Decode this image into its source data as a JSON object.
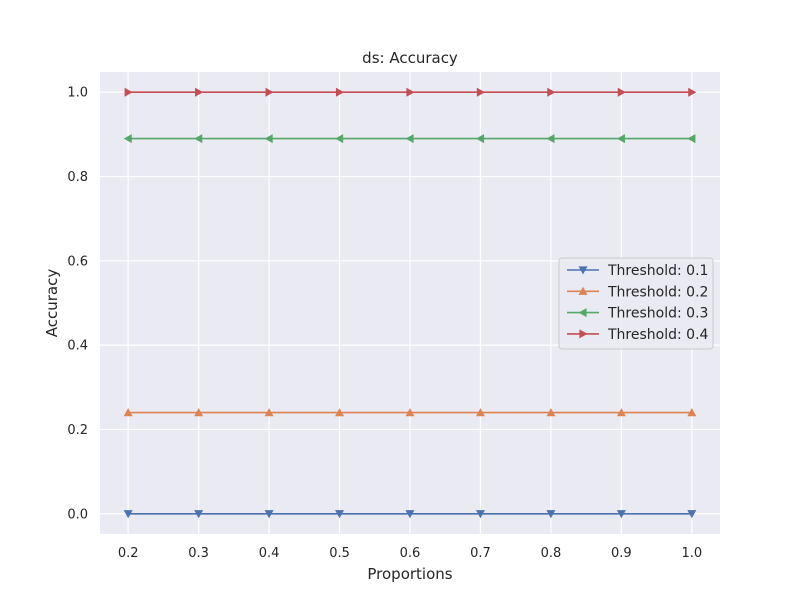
{
  "chart_data": {
    "type": "line",
    "title": "ds: Accuracy",
    "xlabel": "Proportions",
    "ylabel": "Accuracy",
    "x": [
      0.2,
      0.3,
      0.4,
      0.5,
      0.6,
      0.7,
      0.8,
      0.9,
      1.0
    ],
    "x_tick_labels": [
      "0.2",
      "0.3",
      "0.4",
      "0.5",
      "0.6",
      "0.7",
      "0.8",
      "0.9",
      "1.0"
    ],
    "y_ticks": [
      0.0,
      0.2,
      0.4,
      0.6,
      0.8,
      1.0
    ],
    "y_tick_labels": [
      "0.0",
      "0.2",
      "0.4",
      "0.6",
      "0.8",
      "1.0"
    ],
    "xlim": [
      0.16,
      1.04
    ],
    "ylim": [
      -0.048,
      1.048
    ],
    "grid": true,
    "legend_position": "center-right",
    "background_color": "#eaeaf2",
    "series": [
      {
        "name": "Threshold: 0.1",
        "color": "#4c72b0",
        "marker": "triangle-down",
        "values": [
          0.0,
          0.0,
          0.0,
          0.0,
          0.0,
          0.0,
          0.0,
          0.0,
          0.0
        ]
      },
      {
        "name": "Threshold: 0.2",
        "color": "#dd8452",
        "marker": "triangle-up",
        "values": [
          0.24,
          0.24,
          0.24,
          0.24,
          0.24,
          0.24,
          0.24,
          0.24,
          0.24
        ]
      },
      {
        "name": "Threshold: 0.3",
        "color": "#55a868",
        "marker": "triangle-left",
        "values": [
          0.89,
          0.89,
          0.89,
          0.89,
          0.89,
          0.89,
          0.89,
          0.89,
          0.89
        ]
      },
      {
        "name": "Threshold: 0.4",
        "color": "#c44e52",
        "marker": "triangle-right",
        "values": [
          1.0,
          1.0,
          1.0,
          1.0,
          1.0,
          1.0,
          1.0,
          1.0,
          1.0
        ]
      }
    ]
  }
}
